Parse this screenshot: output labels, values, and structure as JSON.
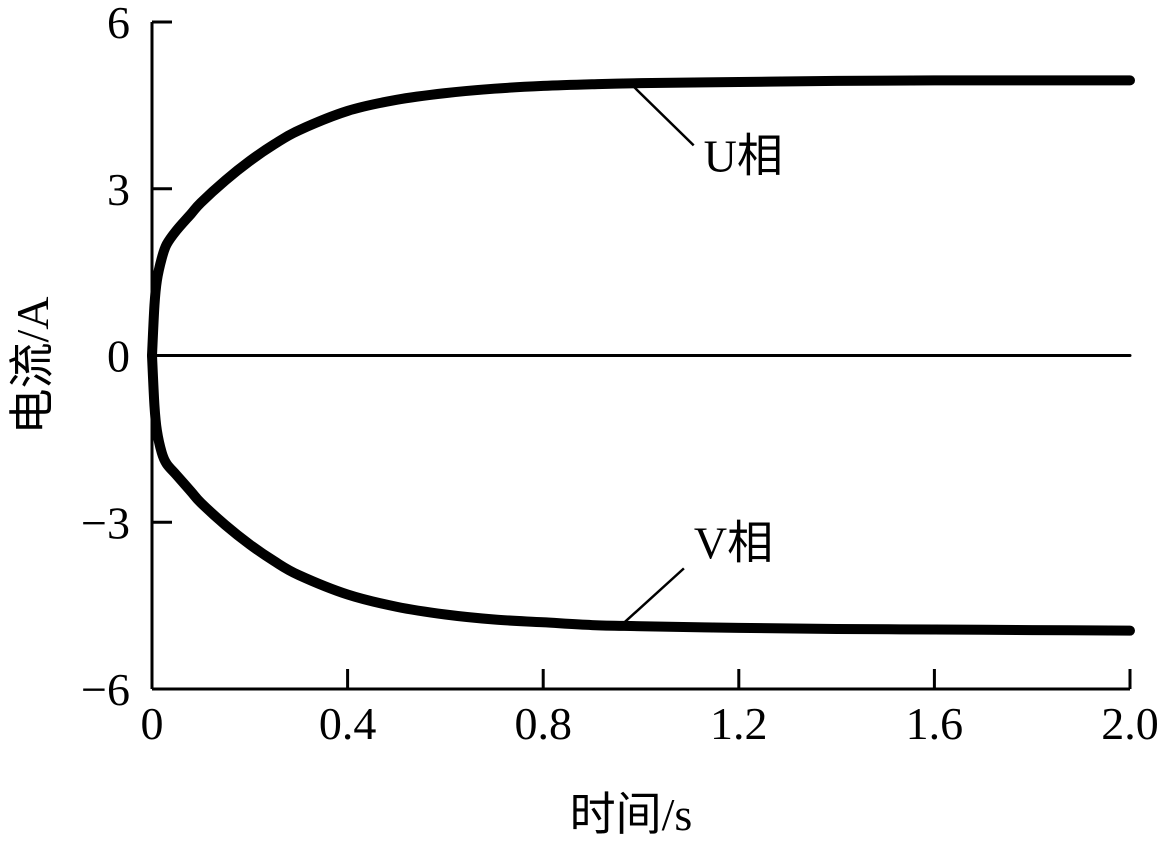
{
  "chart_data": {
    "type": "line",
    "title": "",
    "xlabel": "时间/s",
    "ylabel": "电流/A",
    "xlim": [
      0,
      2.0
    ],
    "ylim": [
      -6,
      6
    ],
    "xticks": [
      "0",
      "0.4",
      "0.8",
      "1.2",
      "1.6",
      "2.0"
    ],
    "xtick_values": [
      0,
      0.4,
      0.8,
      1.2,
      1.6,
      2.0
    ],
    "yticks": [
      "6",
      "3",
      "0",
      "−3",
      "−6"
    ],
    "ytick_values": [
      6,
      3,
      0,
      -3,
      -6
    ],
    "grid": false,
    "series": [
      {
        "name": "U相",
        "color": "#000000",
        "x": [
          0,
          0.005,
          0.01,
          0.02,
          0.03,
          0.05,
          0.08,
          0.1,
          0.15,
          0.2,
          0.25,
          0.3,
          0.4,
          0.5,
          0.6,
          0.7,
          0.8,
          0.9,
          1.0,
          1.2,
          1.4,
          1.6,
          1.8,
          2.0
        ],
        "y": [
          0,
          0.9,
          1.35,
          1.75,
          2.0,
          2.25,
          2.55,
          2.75,
          3.15,
          3.5,
          3.8,
          4.05,
          4.4,
          4.6,
          4.72,
          4.8,
          4.85,
          4.88,
          4.9,
          4.92,
          4.94,
          4.95,
          4.95,
          4.95
        ]
      },
      {
        "name": "V相",
        "color": "#000000",
        "x": [
          0,
          0.005,
          0.01,
          0.02,
          0.03,
          0.05,
          0.08,
          0.1,
          0.15,
          0.2,
          0.25,
          0.3,
          0.4,
          0.5,
          0.6,
          0.7,
          0.8,
          0.9,
          1.0,
          1.2,
          1.4,
          1.6,
          1.8,
          2.0
        ],
        "y": [
          0,
          -0.9,
          -1.35,
          -1.75,
          -1.95,
          -2.15,
          -2.45,
          -2.65,
          -3.05,
          -3.4,
          -3.7,
          -3.95,
          -4.3,
          -4.52,
          -4.66,
          -4.75,
          -4.8,
          -4.85,
          -4.87,
          -4.9,
          -4.92,
          -4.93,
          -4.94,
          -4.95
        ]
      },
      {
        "name": "",
        "color": "#000000",
        "x": [
          0,
          2.0
        ],
        "y": [
          0,
          0
        ]
      }
    ],
    "annotations": [
      {
        "text": "U相",
        "series": "U相",
        "leader_from": [
          0.98,
          4.88
        ],
        "leader_to": [
          1.12,
          3.6
        ],
        "label_at": [
          1.12,
          3.6
        ]
      },
      {
        "text": "V相",
        "series": "V相",
        "leader_from": [
          0.96,
          -4.85
        ],
        "leader_to": [
          1.1,
          -3.65
        ],
        "label_at": [
          1.1,
          -3.65
        ]
      }
    ]
  }
}
